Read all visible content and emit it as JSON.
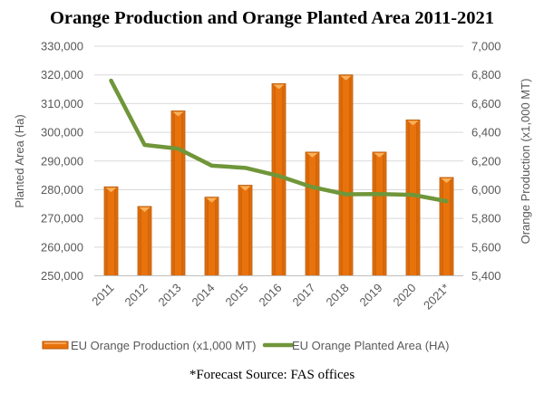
{
  "chart_data": {
    "type": "bar+line",
    "title": "Orange Production and Orange Planted Area 2011-2021",
    "categories": [
      "2011",
      "2012",
      "2013",
      "2014",
      "2015",
      "2016",
      "2017",
      "2018",
      "2019",
      "2020",
      "2021*"
    ],
    "series": [
      {
        "name": "EU Orange Production (x1,000 MT)",
        "type": "bar",
        "axis": "right",
        "color": "#E8720C",
        "values": [
          6020,
          5883,
          6549,
          5948,
          6031,
          6739,
          6262,
          6800,
          6262,
          6486,
          6085
        ]
      },
      {
        "name": "EU Orange Planted Area (HA)",
        "type": "line",
        "axis": "left",
        "color": "#70963A",
        "values": [
          318000,
          295600,
          294300,
          288400,
          287600,
          284800,
          280900,
          278400,
          278500,
          278200,
          276000
        ]
      }
    ],
    "left_axis": {
      "label": "Planted Area (Ha)",
      "min": 250000,
      "max": 330000,
      "step": 10000,
      "tick_labels": [
        "250,000",
        "260,000",
        "270,000",
        "280,000",
        "290,000",
        "300,000",
        "310,000",
        "320,000",
        "330,000"
      ]
    },
    "right_axis": {
      "label": "Orange Production (x1,000 MT)",
      "min": 5400,
      "max": 7000,
      "step": 200,
      "tick_labels": [
        "5,400",
        "5,600",
        "5,800",
        "6,000",
        "6,200",
        "6,400",
        "6,600",
        "6,800",
        "7,000"
      ]
    },
    "grid": true,
    "legend_position": "bottom",
    "footnote": "*Forecast Source: FAS offices"
  }
}
